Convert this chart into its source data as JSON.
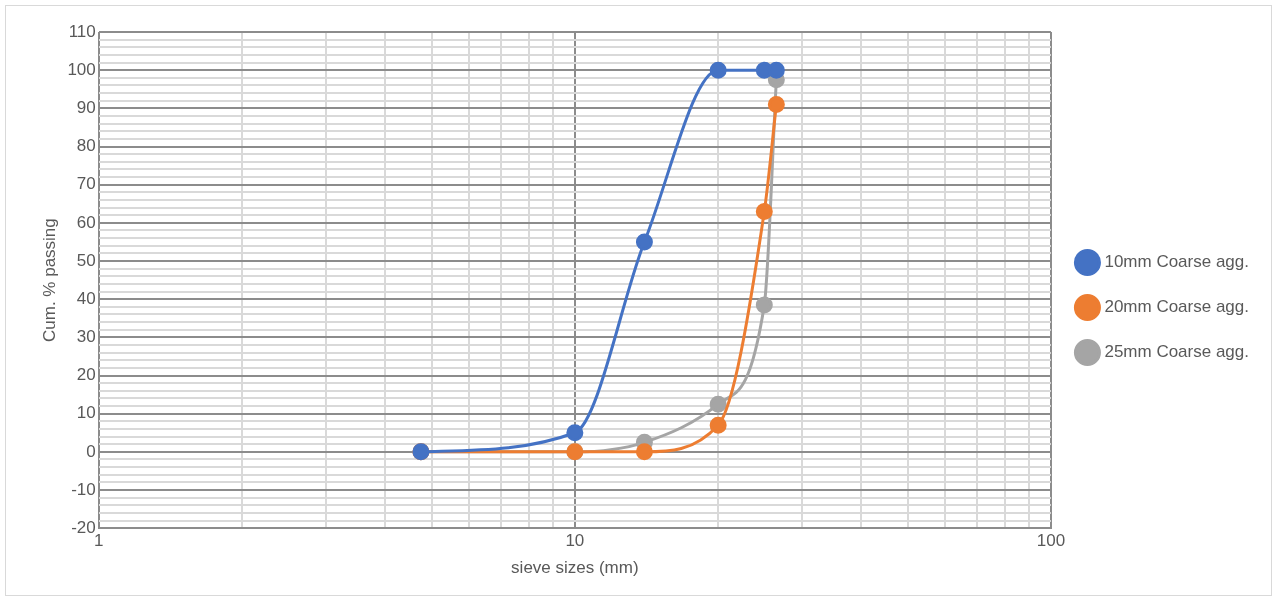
{
  "chart_data": {
    "type": "line",
    "xlabel": "sieve sizes (mm)",
    "ylabel": "Cum. % passing",
    "log": "x",
    "xlim": [
      1,
      100
    ],
    "xticks": [
      1,
      {
        "value": 2,
        "label": null
      },
      {
        "value": 3,
        "label": null
      },
      {
        "value": 4,
        "label": null
      },
      {
        "value": 5,
        "label": null
      },
      {
        "value": 6,
        "label": null
      },
      {
        "value": 7,
        "label": null
      },
      {
        "value": 8,
        "label": null
      },
      {
        "value": 9,
        "label": null
      },
      10,
      {
        "value": 20,
        "label": null
      },
      {
        "value": 30,
        "label": null
      },
      {
        "value": 40,
        "label": null
      },
      {
        "value": 50,
        "label": null
      },
      {
        "value": 60,
        "label": null
      },
      {
        "value": 70,
        "label": null
      },
      {
        "value": 80,
        "label": null
      },
      {
        "value": 90,
        "label": null
      },
      100
    ],
    "ylim": [
      -20,
      110
    ],
    "yticks": [
      -20,
      {
        "value": -18,
        "label": null
      },
      {
        "value": -16,
        "label": null
      },
      {
        "value": -14,
        "label": null
      },
      {
        "value": -12,
        "label": null
      },
      -10,
      {
        "value": -8,
        "label": null
      },
      {
        "value": -6,
        "label": null
      },
      {
        "value": -4,
        "label": null
      },
      {
        "value": -2,
        "label": null
      },
      0,
      {
        "value": 2,
        "label": null
      },
      {
        "value": 4,
        "label": null
      },
      {
        "value": 6,
        "label": null
      },
      {
        "value": 8,
        "label": null
      },
      10,
      {
        "value": 12,
        "label": null
      },
      {
        "value": 14,
        "label": null
      },
      {
        "value": 16,
        "label": null
      },
      {
        "value": 18,
        "label": null
      },
      20,
      {
        "value": 22,
        "label": null
      },
      {
        "value": 24,
        "label": null
      },
      {
        "value": 26,
        "label": null
      },
      {
        "value": 28,
        "label": null
      },
      30,
      {
        "value": 32,
        "label": null
      },
      {
        "value": 34,
        "label": null
      },
      {
        "value": 36,
        "label": null
      },
      {
        "value": 38,
        "label": null
      },
      40,
      {
        "value": 42,
        "label": null
      },
      {
        "value": 44,
        "label": null
      },
      {
        "value": 46,
        "label": null
      },
      {
        "value": 48,
        "label": null
      },
      50,
      {
        "value": 52,
        "label": null
      },
      {
        "value": 54,
        "label": null
      },
      {
        "value": 56,
        "label": null
      },
      {
        "value": 58,
        "label": null
      },
      60,
      {
        "value": 62,
        "label": null
      },
      {
        "value": 64,
        "label": null
      },
      {
        "value": 66,
        "label": null
      },
      {
        "value": 68,
        "label": null
      },
      70,
      {
        "value": 72,
        "label": null
      },
      {
        "value": 74,
        "label": null
      },
      {
        "value": 76,
        "label": null
      },
      {
        "value": 78,
        "label": null
      },
      80,
      {
        "value": 82,
        "label": null
      },
      {
        "value": 84,
        "label": null
      },
      {
        "value": 86,
        "label": null
      },
      {
        "value": 88,
        "label": null
      },
      90,
      {
        "value": 92,
        "label": null
      },
      {
        "value": 94,
        "label": null
      },
      {
        "value": 96,
        "label": null
      },
      {
        "value": 98,
        "label": null
      },
      100,
      {
        "value": 102,
        "label": null
      },
      {
        "value": 104,
        "label": null
      },
      {
        "value": 106,
        "label": null
      },
      {
        "value": 108,
        "label": null
      },
      110
    ],
    "x": [
      4.75,
      10,
      14,
      20,
      25,
      26.5
    ],
    "grid": true,
    "legend": "right",
    "marker": "circle",
    "line_style": "solid",
    "series": [
      {
        "name": "10mm Coarse agg.",
        "color": "#4472c4",
        "values": [
          0,
          5,
          55,
          100,
          100,
          100
        ]
      },
      {
        "name": "20mm Coarse agg.",
        "color": "#ed7d31",
        "values": [
          0,
          0,
          0,
          7,
          63,
          91
        ]
      },
      {
        "name": "25mm Coarse agg.",
        "color": "#a5a5a5",
        "values": [
          0,
          0,
          2.5,
          12.5,
          38.5,
          97.5
        ]
      }
    ]
  }
}
